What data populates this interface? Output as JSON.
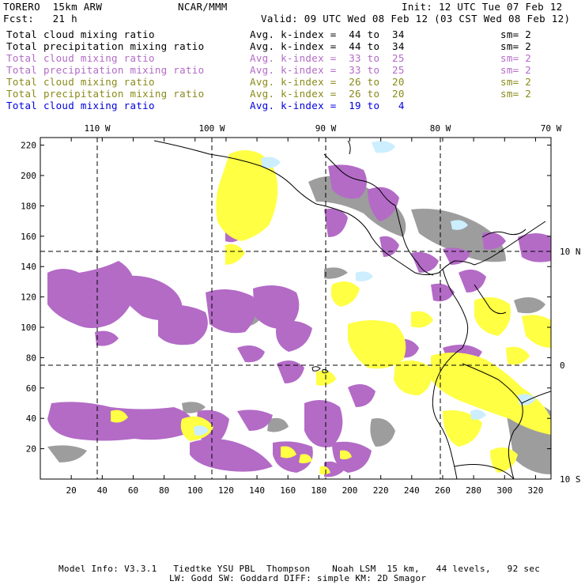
{
  "header": {
    "model": "TORERO  15km ARW",
    "center": "NCAR/MMM",
    "init": "Init: 12 UTC Tue 07 Feb 12",
    "fcst": "Fcst:   21 h",
    "valid": "Valid: 09 UTC Wed 08 Feb 12 (03 CST Wed 08 Feb 12)"
  },
  "legend": [
    {
      "field": "Total cloud mixing ratio",
      "index": "Avg. k-index =  44 to  34",
      "sm": "sm= 2",
      "color": "#000000"
    },
    {
      "field": "Total precipitation mixing ratio",
      "index": "Avg. k-index =  44 to  34",
      "sm": "sm= 2",
      "color": "#000000"
    },
    {
      "field": "Total cloud mixing ratio",
      "index": "Avg. k-index =  33 to  25",
      "sm": "sm= 2",
      "color": "#b36bc6"
    },
    {
      "field": "Total precipitation mixing ratio",
      "index": "Avg. k-index =  33 to  25",
      "sm": "sm= 2",
      "color": "#b36bc6"
    },
    {
      "field": "Total cloud mixing ratio",
      "index": "Avg. k-index =  26 to  20",
      "sm": "sm= 2",
      "color": "#8a8a1a"
    },
    {
      "field": "Total precipitation mixing ratio",
      "index": "Avg. k-index =  26 to  20",
      "sm": "sm= 2",
      "color": "#8a8a1a"
    },
    {
      "field": "Total cloud mixing ratio",
      "index": "Avg. k-index =  19 to   4",
      "sm": "",
      "color": "#0000e0"
    }
  ],
  "map": {
    "lon_labels": [
      "110 W",
      "100 W",
      "90 W",
      "80 W",
      "70 W"
    ],
    "lat_labels": [
      "10 N",
      "0",
      "10 S"
    ],
    "x_ticks": [
      "20",
      "40",
      "60",
      "80",
      "100",
      "120",
      "140",
      "160",
      "180",
      "200",
      "220",
      "240",
      "260",
      "280",
      "300",
      "320"
    ],
    "y_ticks": [
      "20",
      "40",
      "60",
      "80",
      "100",
      "120",
      "140",
      "160",
      "180",
      "200",
      "220"
    ],
    "colors": {
      "purple": "#b36bc6",
      "yellow": "#ffff44",
      "gray": "#9a9a9a",
      "darkgray": "#707070",
      "cyan": "#cceeff",
      "coast": "#000000"
    }
  },
  "footer": {
    "line1": "Model Info: V3.3.1   Tiedtke YSU PBL  Thompson    Noah LSM  15 km,   44 levels,   92 sec",
    "line2": "LW: Godd SW: Goddard DIFF: simple KM: 2D Smagor"
  }
}
